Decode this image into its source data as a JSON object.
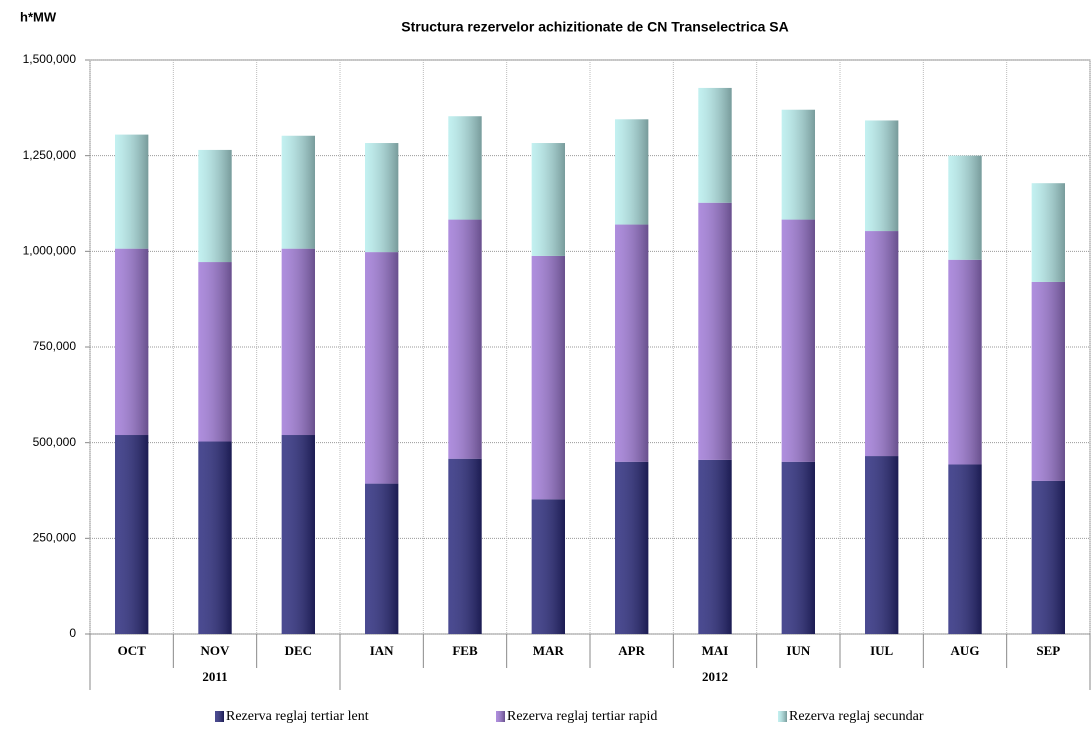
{
  "chart_data": {
    "type": "stacked_bar",
    "title": "Structura rezervelor achizitionate de CN Transelectrica SA",
    "y_label": "h*MW",
    "categories": [
      "OCT",
      "NOV",
      "DEC",
      "IAN",
      "FEB",
      "MAR",
      "APR",
      "MAI",
      "IUN",
      "IUL",
      "AUG",
      "SEP"
    ],
    "groups": [
      {
        "label": "2011",
        "count": 3
      },
      {
        "label": "2012",
        "count": 9
      }
    ],
    "series": [
      {
        "name": "Rezerva reglaj tertiar lent",
        "color": "#2a2a7e",
        "values": [
          520000,
          503000,
          520000,
          393000,
          458000,
          352000,
          450000,
          455000,
          450000,
          465000,
          443000,
          400000
        ]
      },
      {
        "name": "Rezerva reglaj tertiar rapid",
        "color": "#a07ad8",
        "values": [
          487000,
          469000,
          487000,
          605000,
          625000,
          636000,
          620000,
          672000,
          633000,
          588000,
          535000,
          520000
        ]
      },
      {
        "name": "Rezerva reglaj secundar",
        "color": "#b8eeee",
        "values": [
          298000,
          293000,
          295000,
          285000,
          270000,
          295000,
          275000,
          300000,
          287000,
          289000,
          272000,
          258000
        ]
      }
    ],
    "ylim": [
      0,
      1500000
    ],
    "yticks": [
      0,
      {
        "value": 250000,
        "label": "250,000"
      },
      {
        "value": 500000,
        "label": "500,000"
      },
      {
        "value": 750000,
        "label": "750,000"
      },
      {
        "value": 1000000,
        "label": "1,000,000"
      },
      {
        "value": 1250000,
        "label": "1,250,000"
      },
      {
        "value": 1500000,
        "label": "1,500,000"
      }
    ],
    "grid": true
  }
}
